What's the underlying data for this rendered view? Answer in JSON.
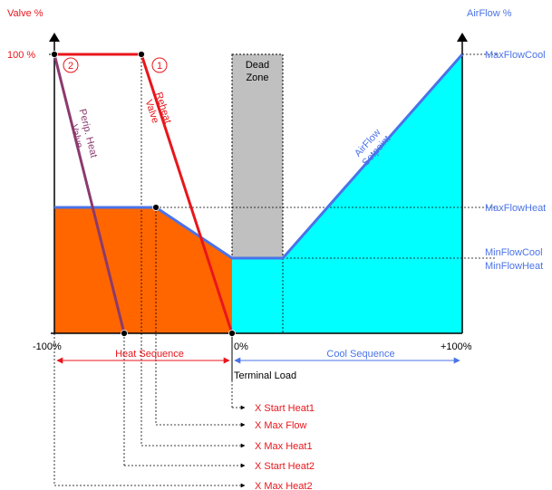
{
  "axis_labels": {
    "valve_percent": "Valve %",
    "airflow_percent": "AirFlow %",
    "valve_100": "100 %",
    "x_min": "-100%",
    "x_zero": "0%",
    "x_max": "+100%",
    "terminal_load": "Terminal Load"
  },
  "right_labels": {
    "max_flow_cool": "MaxFlowCool",
    "max_flow_heat": "MaxFlowHeat",
    "min_flow_cool": "MinFlowCool",
    "min_flow_heat": "MinFlowHeat"
  },
  "curve_labels": {
    "dead_zone_line1": "Dead",
    "dead_zone_line2": "Zone",
    "reheat_line1": "Reheat",
    "reheat_line2": "Valve",
    "perip_line1": "Perip. Heat",
    "perip_line2": "Valve",
    "airflow_line1": "AirFlow",
    "airflow_line2": "Setpoint",
    "circle1": "1",
    "circle2": "2"
  },
  "sequences": {
    "heat": "Heat Sequence",
    "cool": "Cool Sequence"
  },
  "parameters": [
    "X Start Heat1",
    "X Max Flow",
    "X Max Heat1",
    "X Start Heat2",
    "X Max Heat2"
  ],
  "colors": {
    "red": "#e8161c",
    "blue": "#4a73e8",
    "purple": "#8b3a6e",
    "orange": "#ff6600",
    "cyan": "#00ffff",
    "dead_zone": "#c0c0c0"
  }
}
